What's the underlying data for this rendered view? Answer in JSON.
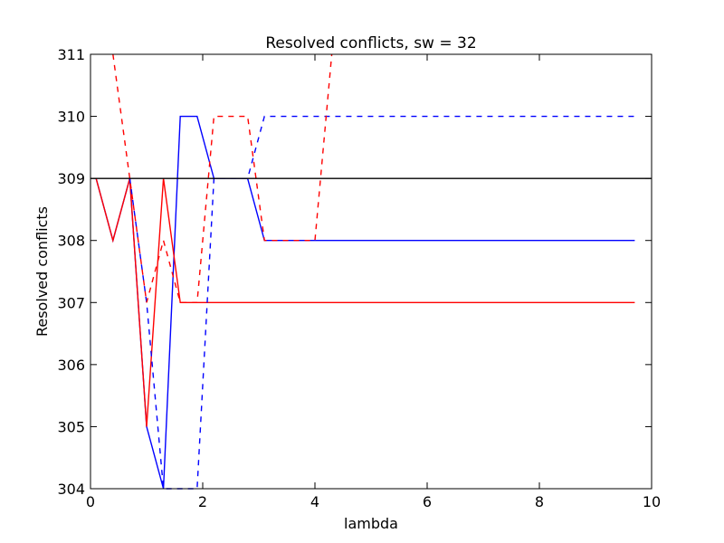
{
  "chart_data": {
    "type": "line",
    "title": "Resolved conflicts, sw = 32",
    "xlabel": "lambda",
    "ylabel": "Resolved conflicts",
    "xlim": [
      0,
      10
    ],
    "ylim": [
      304,
      311
    ],
    "xticks": [
      "0",
      "2",
      "4",
      "6",
      "8",
      "10"
    ],
    "yticks": [
      "304",
      "305",
      "306",
      "307",
      "308",
      "309",
      "310",
      "311"
    ],
    "grid": false,
    "series": [
      {
        "color": "#0000ff",
        "style": "solid",
        "points": [
          [
            0.1,
            309
          ],
          [
            0.4,
            308
          ],
          [
            0.7,
            309
          ],
          [
            1.0,
            305
          ],
          [
            1.3,
            304
          ],
          [
            1.6,
            310
          ],
          [
            1.9,
            310
          ],
          [
            2.2,
            309
          ],
          [
            2.5,
            309
          ],
          [
            2.8,
            309
          ],
          [
            3.1,
            308
          ],
          [
            3.4,
            308
          ],
          [
            4.0,
            308
          ],
          [
            5.0,
            308
          ],
          [
            6.0,
            308
          ],
          [
            7.0,
            308
          ],
          [
            8.0,
            308
          ],
          [
            9.0,
            308
          ],
          [
            9.7,
            308
          ]
        ]
      },
      {
        "color": "#ff0000",
        "style": "solid",
        "points": [
          [
            0.1,
            309
          ],
          [
            0.4,
            308
          ],
          [
            0.7,
            309
          ],
          [
            1.0,
            305
          ],
          [
            1.3,
            309
          ],
          [
            1.6,
            307
          ],
          [
            1.9,
            307
          ],
          [
            2.2,
            307
          ],
          [
            3.0,
            307
          ],
          [
            4.0,
            307
          ],
          [
            5.0,
            307
          ],
          [
            6.0,
            307
          ],
          [
            7.0,
            307
          ],
          [
            8.0,
            307
          ],
          [
            9.0,
            307
          ],
          [
            9.7,
            307
          ]
        ]
      },
      {
        "color": "#0000ff",
        "style": "dashed",
        "points": [
          [
            0.7,
            309
          ],
          [
            1.0,
            307
          ],
          [
            1.3,
            304
          ],
          [
            1.6,
            304
          ],
          [
            1.9,
            304
          ],
          [
            2.2,
            309
          ],
          [
            2.5,
            309
          ],
          [
            2.8,
            309
          ],
          [
            3.1,
            310
          ],
          [
            4.0,
            310
          ],
          [
            5.0,
            310
          ],
          [
            6.0,
            310
          ],
          [
            7.0,
            310
          ],
          [
            8.0,
            310
          ],
          [
            9.0,
            310
          ],
          [
            9.7,
            310
          ]
        ]
      },
      {
        "color": "#ff0000",
        "style": "dashed",
        "points": [
          [
            0.4,
            311
          ],
          [
            0.7,
            309
          ],
          [
            1.0,
            307
          ],
          [
            1.3,
            308
          ],
          [
            1.6,
            307
          ],
          [
            1.9,
            307
          ],
          [
            2.2,
            310
          ],
          [
            2.5,
            310
          ],
          [
            2.8,
            310
          ],
          [
            3.1,
            308
          ],
          [
            3.4,
            308
          ],
          [
            4.0,
            308
          ],
          [
            4.3,
            311
          ]
        ]
      },
      {
        "color": "#000000",
        "style": "solid",
        "points": [
          [
            0.0,
            309
          ],
          [
            10.0,
            309
          ]
        ]
      }
    ]
  }
}
